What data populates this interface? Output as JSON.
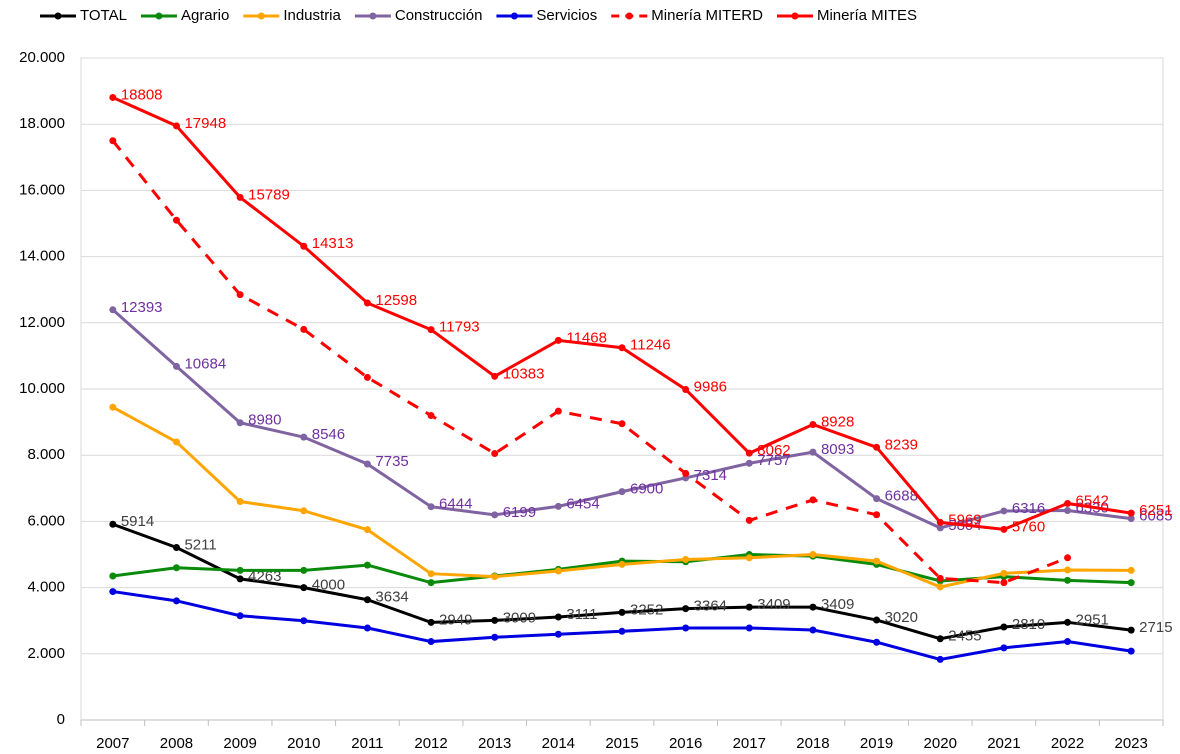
{
  "chart_data": {
    "type": "line",
    "categories": [
      "2007",
      "2008",
      "2009",
      "2010",
      "2011",
      "2012",
      "2013",
      "2014",
      "2015",
      "2016",
      "2017",
      "2018",
      "2019",
      "2020",
      "2021",
      "2022",
      "2023"
    ],
    "ylim": [
      0,
      20000
    ],
    "yticks": [
      0,
      {
        "value": 2000,
        "label": "2.000"
      },
      {
        "value": 4000,
        "label": "4.000"
      },
      {
        "value": 6000,
        "label": "6.000"
      },
      {
        "value": 8000,
        "label": "8.000"
      },
      {
        "value": 10000,
        "label": "10.000"
      },
      {
        "value": 12000,
        "label": "12.000"
      },
      {
        "value": 14000,
        "label": "14.000"
      },
      {
        "value": 16000,
        "label": "16.000"
      },
      {
        "value": 18000,
        "label": "18.000"
      },
      {
        "value": 20000,
        "label": "20.000"
      }
    ],
    "grid": true,
    "legend": "top",
    "series": [
      {
        "name": "TOTAL",
        "color": "#000000",
        "data_labels": true,
        "label_color": "#404040",
        "values": [
          5914,
          5211,
          4263,
          4000,
          3634,
          2949,
          3009,
          3111,
          3252,
          3364,
          3409,
          3409,
          3020,
          2455,
          2810,
          2951,
          2715
        ]
      },
      {
        "name": "Agrario",
        "color": "#0a8a0a",
        "values": [
          4350,
          4600,
          4520,
          4520,
          4680,
          4150,
          4350,
          4550,
          4800,
          4780,
          5000,
          4950,
          4700,
          4200,
          4330,
          4220,
          4150
        ]
      },
      {
        "name": "Industria",
        "color": "#ffa500",
        "values": [
          9450,
          8400,
          6600,
          6320,
          5750,
          4420,
          4330,
          4500,
          4700,
          4850,
          4900,
          5000,
          4800,
          4020,
          4430,
          4530,
          4520
        ]
      },
      {
        "name": "Construcción",
        "color": "#8064a2",
        "data_labels": true,
        "label_color": "#7030a0",
        "values": [
          12393,
          10684,
          8980,
          8546,
          7735,
          6444,
          6199,
          6454,
          6900,
          7314,
          7757,
          8093,
          6688,
          5804,
          6316,
          6330,
          6085
        ]
      },
      {
        "name": "Servicios",
        "color": "#0000e0",
        "values": [
          3880,
          3600,
          3150,
          3000,
          2780,
          2370,
          2500,
          2590,
          2680,
          2780,
          2780,
          2720,
          2350,
          1830,
          2180,
          2370,
          2080
        ]
      },
      {
        "name": "Minería MITERD",
        "color": "#ff0000",
        "line_style": "dashed",
        "values": [
          17500,
          15100,
          12850,
          11800,
          10350,
          9200,
          8050,
          9330,
          8950,
          7450,
          6030,
          6650,
          6200,
          4280,
          4150,
          4900,
          null
        ]
      },
      {
        "name": "Minería MITES",
        "color": "#ff0000",
        "data_labels": true,
        "label_color": "#ff0000",
        "values": [
          18808,
          17948,
          15789,
          14313,
          12598,
          11793,
          10383,
          11468,
          11246,
          9986,
          8062,
          8928,
          8239,
          5969,
          5760,
          6542,
          6251
        ]
      }
    ]
  }
}
